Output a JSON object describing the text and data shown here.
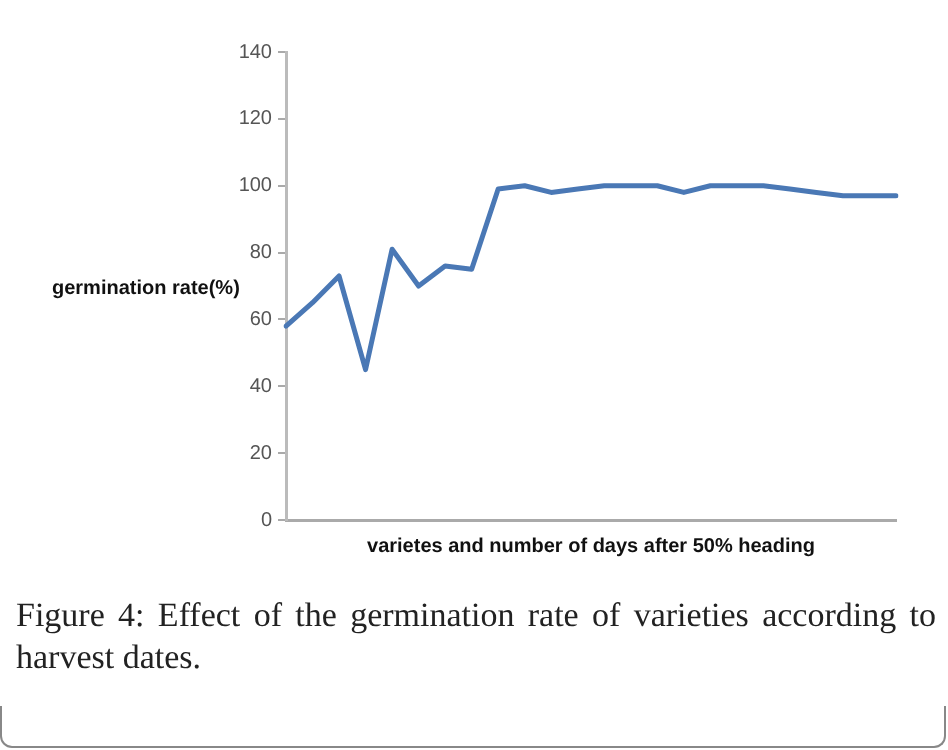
{
  "chart_data": {
    "type": "line",
    "xlabel": "varietes and number of days after 50% heading",
    "ylabel": "germination rate(%)",
    "categories": [
      null,
      null,
      null,
      null,
      null,
      null,
      null,
      null,
      null,
      null,
      null,
      null,
      null,
      null,
      null,
      null,
      null,
      null,
      null,
      null,
      null,
      null,
      null,
      null
    ],
    "series": [
      {
        "color": "#4a78b5",
        "values": [
          58,
          65,
          73,
          45,
          81,
          70,
          76,
          75,
          99,
          100,
          98,
          99,
          100,
          100,
          100,
          98,
          100,
          100,
          100,
          99,
          98,
          97,
          97,
          97
        ]
      }
    ],
    "ylim": [
      0,
      140
    ],
    "yticks": [
      0,
      20,
      40,
      60,
      80,
      100,
      120,
      140
    ],
    "grid": false,
    "legend": false,
    "tick_labels": "y",
    "marker": "none",
    "line_style": "solid",
    "annotations": [
      "Figure 4: Effect of the germination rate of varieties according to harvest dates."
    ]
  }
}
